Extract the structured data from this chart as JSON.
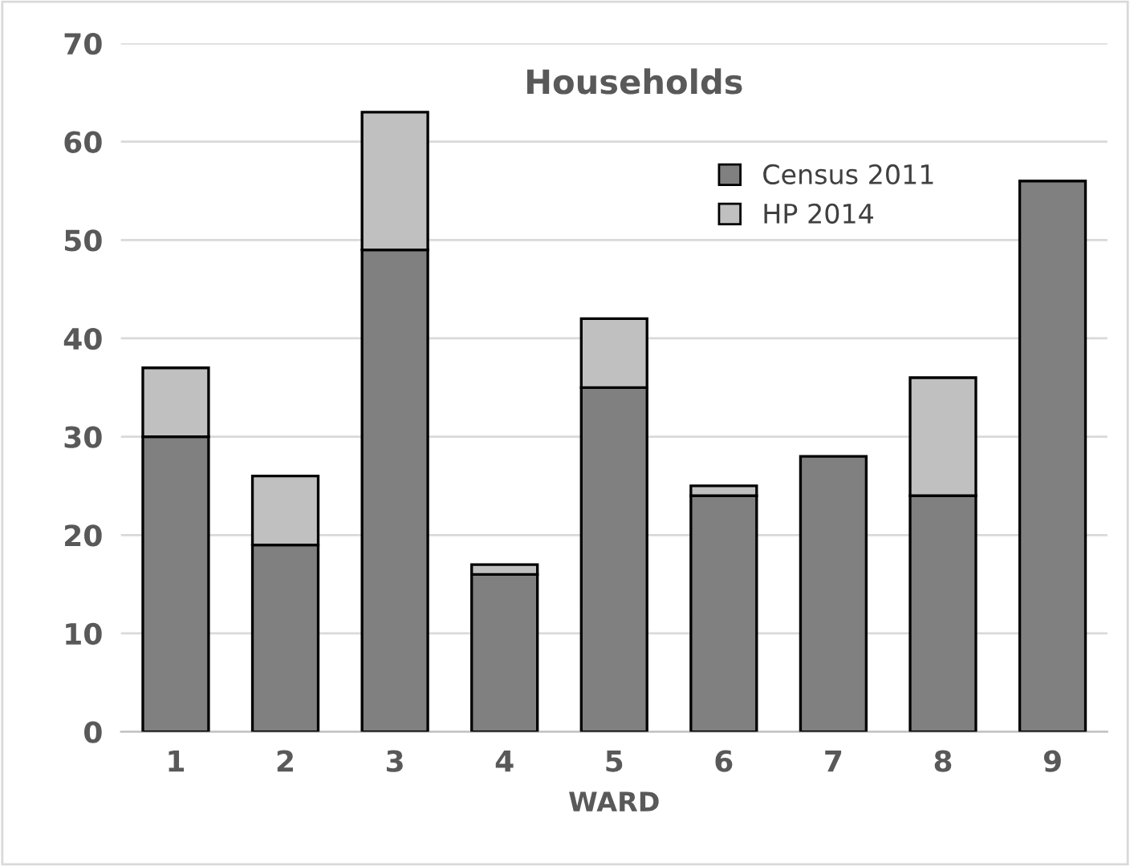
{
  "chart_data": {
    "type": "bar",
    "title": "Households",
    "xlabel": "WARD",
    "categories": [
      "1",
      "2",
      "3",
      "4",
      "5",
      "6",
      "7",
      "8",
      "9"
    ],
    "stacked": true,
    "series": [
      {
        "name": "Census 2011",
        "color": "#808080",
        "values": [
          30,
          19,
          49,
          16,
          35,
          24,
          28,
          24,
          56
        ]
      },
      {
        "name": "HP 2014",
        "color": "#c0c0c0",
        "values": [
          7,
          7,
          14,
          1,
          7,
          1,
          null,
          12,
          null
        ]
      }
    ],
    "ylim": [
      0,
      70
    ],
    "yticks": [
      0,
      10,
      20,
      30,
      40,
      50,
      60,
      70
    ],
    "grid": "y",
    "legend": "top right"
  }
}
